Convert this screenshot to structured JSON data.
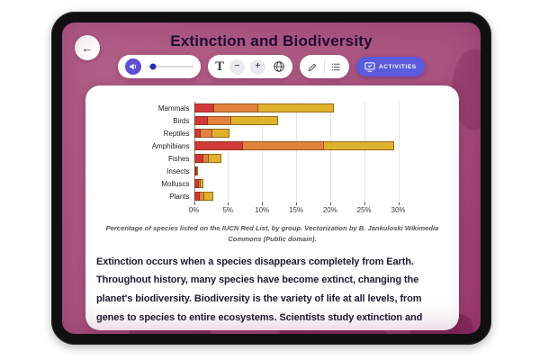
{
  "header": {
    "title": "Extinction and Biodiversity",
    "back_icon": "←"
  },
  "toolbar": {
    "volume": {
      "value_percent": 12
    },
    "font": {
      "label": "T",
      "decrease": "−",
      "increase": "+"
    },
    "activities": {
      "label": "ACTIVITIES"
    }
  },
  "chart_data": {
    "type": "bar",
    "orientation": "horizontal",
    "stacked": true,
    "categories": [
      "Mammals",
      "Birds",
      "Reptiles",
      "Amphibians",
      "Fishes",
      "Insects",
      "Molluscs",
      "Plants"
    ],
    "series": [
      {
        "name": "red-segment",
        "color": "#d23a3a",
        "values": [
          3.0,
          2.0,
          1.0,
          7.2,
          1.4,
          0.1,
          0.7,
          0.8
        ]
      },
      {
        "name": "orange-segment",
        "color": "#e2823d",
        "values": [
          6.5,
          3.5,
          1.7,
          11.9,
          0.8,
          0.1,
          0.3,
          0.7
        ]
      },
      {
        "name": "yellow-segment",
        "color": "#dfb22e",
        "values": [
          11.0,
          6.8,
          2.5,
          10.3,
          1.8,
          0.1,
          0.4,
          1.4
        ]
      }
    ],
    "xlim": [
      0,
      30
    ],
    "x_ticks": [
      "0%",
      "5%",
      "10%",
      "15%",
      "20%",
      "25%",
      "30%"
    ],
    "grid": true,
    "legend": "none",
    "title": ""
  },
  "caption": "Percentage of species listed on the IUCN Red List, by group. Vectorization by B. Jankuloski Wikimedia Commons (Public domain).",
  "paragraph": "Extinction occurs when a species disappears completely from Earth. Throughout history, many species have become extinct, changing the planet's biodiversity. Biodiversity is the variety of life at all levels, from genes to species to entire ecosystems. Scientists study extinction and biodiversity to understand how life on Earth changes over time and why protecting this diversity is important for all living"
}
